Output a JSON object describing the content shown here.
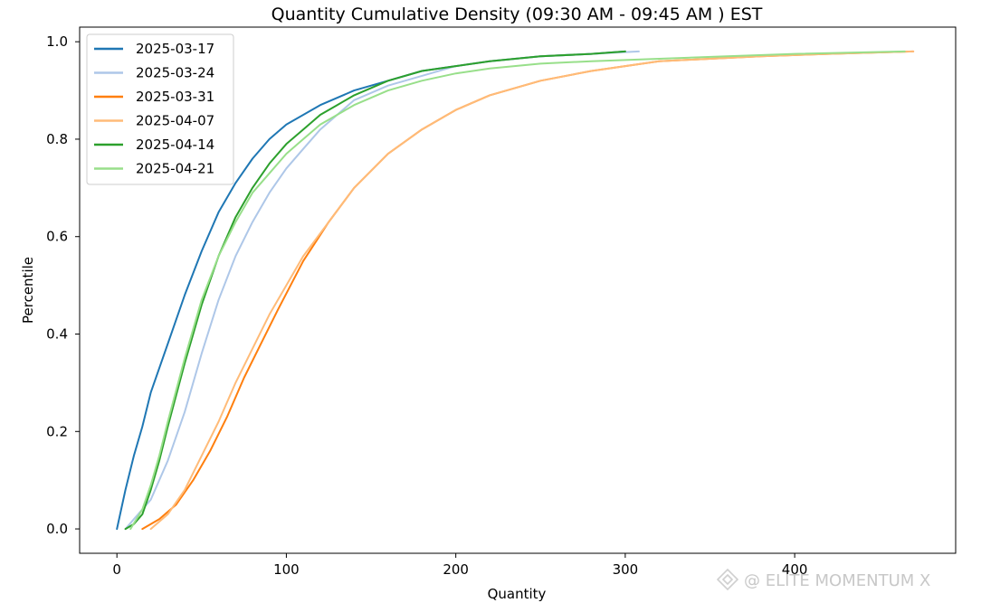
{
  "chart_data": {
    "type": "line",
    "title": "Quantity Cumulative Density  (09:30 AM - 09:45 AM ) EST",
    "xlabel": "Quantity",
    "ylabel": "Percentile",
    "xlim": [
      -22,
      495
    ],
    "ylim": [
      -0.05,
      1.03
    ],
    "xticks": [
      0,
      100,
      200,
      300,
      400
    ],
    "yticks": [
      0.0,
      0.2,
      0.4,
      0.6,
      0.8,
      1.0
    ],
    "xtick_labels": [
      "0",
      "100",
      "200",
      "300",
      "400"
    ],
    "ytick_labels": [
      "0.0",
      "0.2",
      "0.4",
      "0.6",
      "0.8",
      "1.0"
    ],
    "grid": false,
    "legend_position": "top-left",
    "series": [
      {
        "name": "2025-03-17",
        "color": "#1f77b4",
        "x": [
          0,
          5,
          10,
          15,
          20,
          30,
          40,
          50,
          60,
          70,
          80,
          90,
          100,
          120,
          140,
          160,
          180,
          200,
          220,
          250,
          280,
          300
        ],
        "y": [
          0.0,
          0.08,
          0.15,
          0.21,
          0.28,
          0.38,
          0.48,
          0.57,
          0.65,
          0.71,
          0.76,
          0.8,
          0.83,
          0.87,
          0.9,
          0.92,
          0.94,
          0.95,
          0.96,
          0.97,
          0.975,
          0.98
        ]
      },
      {
        "name": "2025-03-24",
        "color": "#aec7e8",
        "x": [
          5,
          10,
          20,
          30,
          40,
          50,
          60,
          70,
          80,
          90,
          100,
          110,
          120,
          130,
          140,
          160,
          180,
          200,
          220,
          250,
          280,
          308
        ],
        "y": [
          0.0,
          0.02,
          0.06,
          0.14,
          0.24,
          0.36,
          0.47,
          0.56,
          0.63,
          0.69,
          0.74,
          0.78,
          0.82,
          0.85,
          0.88,
          0.91,
          0.93,
          0.95,
          0.96,
          0.97,
          0.975,
          0.98
        ]
      },
      {
        "name": "2025-03-31",
        "color": "#ff7f0e",
        "x": [
          15,
          25,
          35,
          45,
          55,
          65,
          75,
          85,
          95,
          110,
          125,
          140,
          160,
          180,
          200,
          220,
          250,
          280,
          300,
          320,
          350,
          380,
          420,
          470
        ],
        "y": [
          0.0,
          0.02,
          0.05,
          0.1,
          0.16,
          0.23,
          0.31,
          0.38,
          0.45,
          0.55,
          0.63,
          0.7,
          0.77,
          0.82,
          0.86,
          0.89,
          0.92,
          0.94,
          0.95,
          0.96,
          0.965,
          0.97,
          0.975,
          0.98
        ]
      },
      {
        "name": "2025-04-07",
        "color": "#ffbb78",
        "x": [
          20,
          30,
          40,
          50,
          60,
          70,
          80,
          90,
          100,
          110,
          125,
          140,
          160,
          180,
          200,
          220,
          250,
          280,
          300,
          320,
          350,
          380,
          420,
          470
        ],
        "y": [
          0.0,
          0.03,
          0.08,
          0.15,
          0.22,
          0.3,
          0.37,
          0.44,
          0.5,
          0.56,
          0.63,
          0.7,
          0.77,
          0.82,
          0.86,
          0.89,
          0.92,
          0.94,
          0.95,
          0.96,
          0.965,
          0.97,
          0.975,
          0.98
        ]
      },
      {
        "name": "2025-04-14",
        "color": "#2ca02c",
        "x": [
          5,
          10,
          15,
          20,
          25,
          30,
          40,
          50,
          60,
          70,
          80,
          90,
          100,
          110,
          120,
          130,
          140,
          160,
          180,
          200,
          220,
          250,
          280,
          300
        ],
        "y": [
          0.0,
          0.01,
          0.03,
          0.08,
          0.14,
          0.21,
          0.34,
          0.46,
          0.56,
          0.64,
          0.7,
          0.75,
          0.79,
          0.82,
          0.85,
          0.87,
          0.89,
          0.92,
          0.94,
          0.95,
          0.96,
          0.97,
          0.975,
          0.98
        ]
      },
      {
        "name": "2025-04-21",
        "color": "#98df8a",
        "x": [
          8,
          15,
          20,
          25,
          30,
          40,
          50,
          60,
          70,
          80,
          90,
          100,
          110,
          120,
          130,
          140,
          160,
          180,
          200,
          220,
          250,
          280,
          320,
          360,
          400,
          465
        ],
        "y": [
          0.0,
          0.04,
          0.09,
          0.15,
          0.22,
          0.35,
          0.47,
          0.56,
          0.63,
          0.69,
          0.73,
          0.77,
          0.8,
          0.83,
          0.85,
          0.87,
          0.9,
          0.92,
          0.935,
          0.945,
          0.955,
          0.96,
          0.965,
          0.97,
          0.975,
          0.98
        ]
      }
    ]
  },
  "watermark": {
    "text": "@ ELITE MOMENTUM X"
  }
}
